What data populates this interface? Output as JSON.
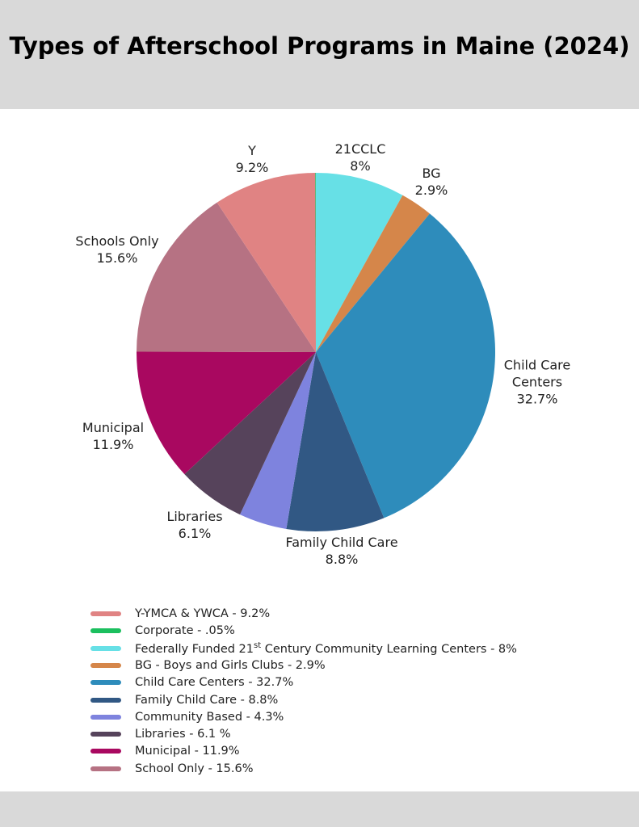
{
  "chart_data": {
    "type": "pie",
    "title": "Types of Afterschool Programs in Maine (2024)",
    "categories": [
      "21CCLC",
      "BG",
      "Child Care Centers",
      "Family Child Care",
      null,
      "Libraries",
      "Municipal",
      "Schools Only",
      "Y",
      null
    ],
    "values": [
      8,
      2.9,
      32.7,
      8.8,
      4.3,
      6.1,
      11.9,
      15.6,
      9.2,
      0.05
    ],
    "value_labels": [
      "8%",
      "2.9%",
      "32.7%",
      "8.8%",
      null,
      "6.1%",
      "11.9%",
      "15.6%",
      "9.2%",
      null
    ],
    "colors": [
      "#67e0e6",
      "#d5864a",
      "#2e8cbb",
      "#315884",
      "#7e83de",
      "#56435b",
      "#a90860",
      "#b67283",
      "#e08383",
      "#1bbf5e"
    ],
    "legend": [
      {
        "label": "Y-YMCA & YWCA - 9.2%",
        "color": "#e08383"
      },
      {
        "label": "Corporate - .05%",
        "color": "#1bbf5e"
      },
      {
        "label": [
          "Federally Funded 21",
          "st",
          " Century Community Learning Centers - 8%"
        ],
        "color": "#67e0e6"
      },
      {
        "label": "BG - Boys and Girls Clubs - 2.9%",
        "color": "#d5864a"
      },
      {
        "label": "Child Care Centers - 32.7%",
        "color": "#2e8cbb"
      },
      {
        "label": "Family Child Care - 8.8%",
        "color": "#315884"
      },
      {
        "label": "Community Based - 4.3%",
        "color": "#7e83de"
      },
      {
        "label": "Libraries - 6.1 %",
        "color": "#56435b"
      },
      {
        "label": "Municipal - 11.9%",
        "color": "#a90860"
      },
      {
        "label": "School Only - 15.6%",
        "color": "#b67283"
      }
    ]
  }
}
